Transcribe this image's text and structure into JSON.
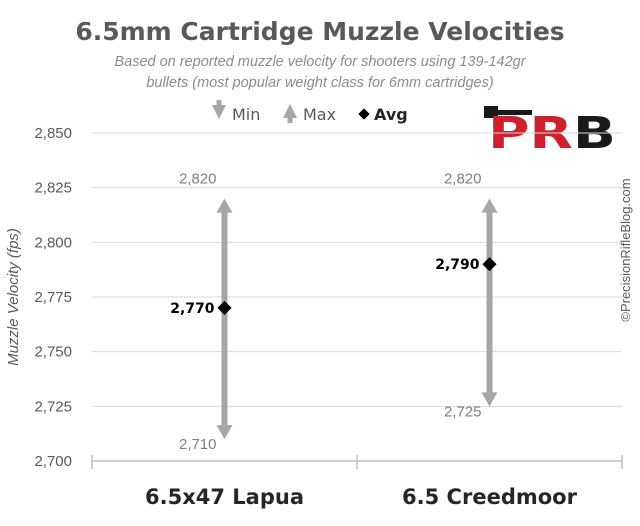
{
  "chart_data": {
    "type": "range",
    "title": "6.5mm Cartridge Muzzle Velocities",
    "subtitle_lines": [
      "Based on reported muzzle velocity for shooters using 139-142gr",
      "bullets (most popular weight class for 6mm cartridges)"
    ],
    "ylabel": "Muzzle Velocity (fps)",
    "xlabel": "",
    "ylim": [
      2700,
      2850
    ],
    "yticks": [
      2700,
      2725,
      2750,
      2775,
      2800,
      2825,
      2850
    ],
    "ytick_labels": [
      "2,700",
      "2,725",
      "2,750",
      "2,775",
      "2,800",
      "2,825",
      "2,850"
    ],
    "grid": true,
    "legend_position": "top",
    "legend": [
      {
        "label": "Min",
        "marker": "down-arrow",
        "color": "#a6a6a6"
      },
      {
        "label": "Max",
        "marker": "up-arrow",
        "color": "#a6a6a6"
      },
      {
        "label": "Avg",
        "marker": "diamond",
        "color": "#000000"
      }
    ],
    "categories": [
      "6.5x47 Lapua",
      "6.5 Creedmoor"
    ],
    "series": [
      {
        "name": "Min",
        "values": [
          2710,
          2725
        ],
        "labels": [
          "2,710",
          "2,725"
        ]
      },
      {
        "name": "Max",
        "values": [
          2820,
          2820
        ],
        "labels": [
          "2,820",
          "2,820"
        ]
      },
      {
        "name": "Avg",
        "values": [
          2770,
          2790
        ],
        "labels": [
          "2,770",
          "2,790"
        ]
      }
    ]
  },
  "watermark": "©PrecisionRifleBlog.com",
  "logo": {
    "text": "PRB",
    "colors": {
      "red": "#d0202e",
      "black": "#1a1a1a"
    }
  }
}
